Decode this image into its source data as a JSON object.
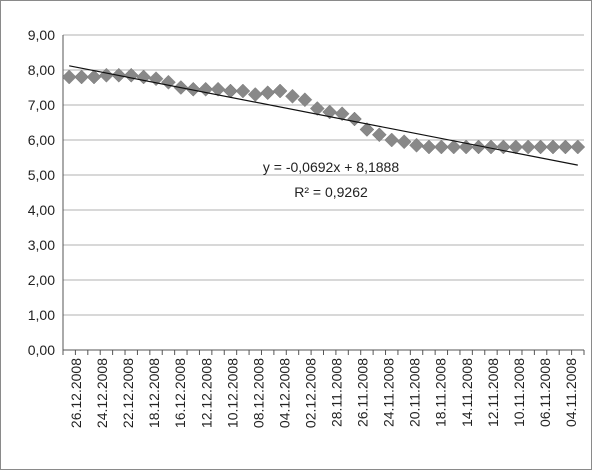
{
  "chart_data": {
    "type": "scatter",
    "title": "",
    "xlabel": "",
    "ylabel": "",
    "ylim": [
      0,
      9
    ],
    "y_ticks": [
      "0,00",
      "1,00",
      "2,00",
      "3,00",
      "4,00",
      "5,00",
      "6,00",
      "7,00",
      "8,00",
      "9,00"
    ],
    "x_tick_labels": [
      "26.12.2008",
      "24.12.2008",
      "22.12.2008",
      "18.12.2008",
      "16.12.2008",
      "12.12.2008",
      "10.12.2008",
      "08.12.2008",
      "04.12.2008",
      "02.12.2008",
      "28.11.2008",
      "26.11.2008",
      "24.11.2008",
      "20.11.2008",
      "18.11.2008",
      "14.11.2008",
      "12.11.2008",
      "10.11.2008",
      "06.11.2008",
      "04.11.2008"
    ],
    "grid": true,
    "legend": "none",
    "series": [
      {
        "values": [
          7.8,
          7.8,
          7.8,
          7.85,
          7.85,
          7.85,
          7.8,
          7.75,
          7.65,
          7.5,
          7.45,
          7.45,
          7.45,
          7.4,
          7.4,
          7.3,
          7.35,
          7.4,
          7.25,
          7.15,
          6.9,
          6.8,
          6.75,
          6.6,
          6.3,
          6.15,
          6.0,
          5.95,
          5.85,
          5.8,
          5.8,
          5.8,
          5.8,
          5.8,
          5.8,
          5.8,
          5.8,
          5.8,
          5.8,
          5.8,
          5.8,
          5.8
        ]
      }
    ],
    "trendline": {
      "slope": -0.0692,
      "intercept": 8.1888,
      "equation": "y = -0,0692x + 8,1888",
      "r_squared": "R² = 0,9262"
    },
    "colors": {
      "marker": "#888888",
      "trendline": "#111111",
      "grid": "#b0b0b0",
      "axis": "#555555"
    }
  }
}
